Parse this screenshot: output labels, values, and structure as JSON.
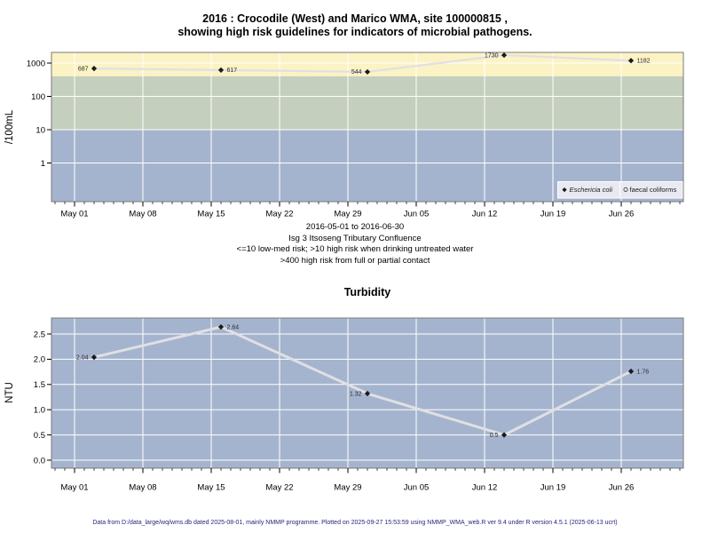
{
  "title": {
    "line1": "2016 : Crocodile (West) and Marico WMA, site 100000815 ,",
    "line2": "showing high risk guidelines for indicators of microbial pathogens."
  },
  "annotation": {
    "line1": "2016-05-01 to 2016-06-30",
    "line2": "Isg 3 Itsoseng Tributary Confluence",
    "line3": "<=10 low-med risk; >10 high risk when drinking untreated water",
    "line4": ">400 high risk from full or partial contact"
  },
  "footer": {
    "text": "Data from D:/data_large/wq/wms.db dated 2025-08-01, mainly NMMP programme. Plotted on 2025-09-27 15:53:59 using NMMP_WMA_web.R ver 9.4 under R version 4.5.1 (2025-06-13 ucrt)"
  },
  "colors": {
    "band_high_risk": "#FBF3C4",
    "band_mid_risk": "#C5CFBD",
    "band_low_risk": "#A5B4CE",
    "plot_bg": "#A5B4CE",
    "grid": "#ffffff",
    "data_line": "#E0E0E4",
    "marker": "#1a1a1a",
    "plot_border": "#7a7a7a",
    "legend_bg": "#E9E9F2",
    "footer_text": "#26267E"
  },
  "chart_data": [
    {
      "id": "microbial",
      "type": "line",
      "y_scale": "log10",
      "ylabel": "/100mL",
      "y_tick_values": [
        1,
        10,
        100,
        1000
      ],
      "y_tick_labels": [
        "1",
        "10",
        "100",
        "1000"
      ],
      "x_tick_labels": [
        "May 01",
        "May 08",
        "May 15",
        "May 22",
        "May 29",
        "Jun 05",
        "Jun 12",
        "Jun 19",
        "Jun 26"
      ],
      "x_tick_days": [
        0,
        7,
        14,
        21,
        28,
        35,
        42,
        49,
        56
      ],
      "grid": true,
      "legend_position": "bottom-right",
      "bands": [
        {
          "min": 400,
          "max": null,
          "color": "#FBF3C4",
          "label": ">400 high risk from full or partial contact"
        },
        {
          "min": 10,
          "max": 400,
          "color": "#C5CFBD",
          "label": ">10 high risk when drinking untreated water"
        },
        {
          "min": null,
          "max": 10,
          "color": "#A5B4CE",
          "label": "<=10 low-med risk"
        }
      ],
      "series": [
        {
          "name": "Eschericia coli",
          "marker": "filled-diamond",
          "x_days": [
            2,
            15,
            30,
            44,
            57
          ],
          "values": [
            687,
            617,
            544,
            1730,
            1182
          ],
          "point_labels": [
            "687",
            "617",
            "544",
            "1730",
            "1182"
          ],
          "label_side": [
            "left",
            "right",
            "left",
            "left",
            "right"
          ]
        },
        {
          "name": "faecal coliforms",
          "marker": "open-circle",
          "x_days": [],
          "values": [],
          "point_labels": [],
          "label_side": []
        }
      ]
    },
    {
      "id": "turbidity",
      "type": "line",
      "title": "Turbidity",
      "y_scale": "linear",
      "ylabel": "NTU",
      "ylim": [
        0,
        2.75
      ],
      "y_tick_values": [
        0,
        0.5,
        1,
        1.5,
        2,
        2.5
      ],
      "y_tick_labels": [
        "0.0",
        "0.5",
        "1.0",
        "1.5",
        "2.0",
        "2.5"
      ],
      "x_tick_labels": [
        "May 01",
        "May 08",
        "May 15",
        "May 22",
        "May 29",
        "Jun 05",
        "Jun 12",
        "Jun 19",
        "Jun 26"
      ],
      "x_tick_days": [
        0,
        7,
        14,
        21,
        28,
        35,
        42,
        49,
        56
      ],
      "grid": true,
      "bands": [
        {
          "min": null,
          "max": null,
          "color": "#A5B4CE",
          "label": "plot background"
        }
      ],
      "series": [
        {
          "name": "Turbidity",
          "marker": "filled-diamond",
          "x_days": [
            2,
            15,
            30,
            44,
            57
          ],
          "values": [
            2.04,
            2.64,
            1.32,
            0.5,
            1.76
          ],
          "point_labels": [
            "2.04",
            "2.64",
            "1.32",
            "0.5",
            "1.76"
          ],
          "label_side": [
            "left",
            "right",
            "left",
            "left",
            "right"
          ]
        }
      ]
    }
  ]
}
